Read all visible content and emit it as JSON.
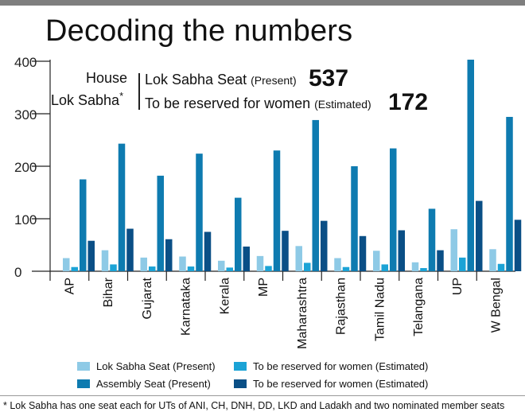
{
  "title": "Decoding the numbers",
  "info_box": {
    "house_label": "House",
    "house_value": "Lok Sabha",
    "house_marker": "*",
    "row1_label": "Lok Sabha Seat",
    "row1_note": "(Present)",
    "row1_value": "537",
    "row2_label": "To be reserved for women",
    "row2_note": "(Estimated)",
    "row2_value": "172"
  },
  "legend": [
    {
      "label": "Lok Sabha Seat (Present)",
      "color": "#8ecae6"
    },
    {
      "label": "To be reserved for women (Estimated)",
      "color": "#1ba3d6"
    },
    {
      "label": "Assembly Seat (Present)",
      "color": "#0e7bb0"
    },
    {
      "label": "To be reserved for women (Estimated)",
      "color": "#0a4f86"
    }
  ],
  "footnote": "* Lok Sabha has one seat each for UTs of ANI, CH, DNH, DD, LKD and Ladakh and two nominated member seats",
  "chart_data": {
    "type": "bar",
    "categories": [
      "AP",
      "Bihar",
      "Gujarat",
      "Karnataka",
      "Kerala",
      "MP",
      "Maharashtra",
      "Rajasthan",
      "Tamil Nadu",
      "Telangana",
      "UP",
      "W Bengal"
    ],
    "series": [
      {
        "name": "Lok Sabha Seat (Present)",
        "color": "#8ecae6",
        "values": [
          25,
          40,
          26,
          28,
          20,
          29,
          48,
          25,
          39,
          17,
          80,
          42
        ]
      },
      {
        "name": "To be reserved for women (Estimated)",
        "color": "#1ba3d6",
        "values": [
          8,
          13,
          9,
          9,
          7,
          10,
          16,
          8,
          13,
          6,
          26,
          14
        ]
      },
      {
        "name": "Assembly Seat (Present)",
        "color": "#0e7bb0",
        "values": [
          175,
          243,
          182,
          224,
          140,
          230,
          288,
          200,
          234,
          119,
          403,
          294
        ]
      },
      {
        "name": "To be reserved for women (Estimated)",
        "color": "#0a4f86",
        "values": [
          58,
          81,
          61,
          75,
          47,
          77,
          96,
          67,
          78,
          40,
          134,
          98
        ]
      }
    ],
    "yticks": [
      0,
      100,
      200,
      300,
      400
    ],
    "ylim": [
      0,
      400
    ],
    "grid": false
  }
}
